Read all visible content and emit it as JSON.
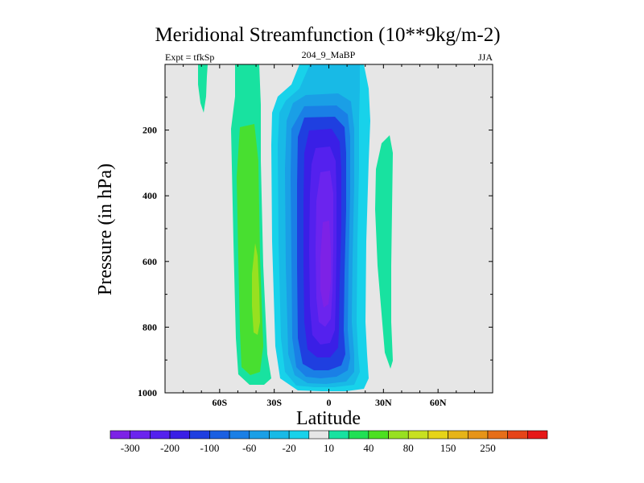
{
  "chart_data": {
    "type": "contour",
    "title": "Meridional Streamfunction (10**9kg/m-2)",
    "left_string": "Expt = tfkSp",
    "center_string": "204_9_MaBP",
    "right_string": "JJA",
    "xlabel": "Latitude",
    "ylabel": "Pressure (in hPa)",
    "xlim": [
      -90,
      90
    ],
    "ylim": [
      0,
      1000
    ],
    "y_inverted": true,
    "x_ticks": [
      {
        "value": -60,
        "label": "60S"
      },
      {
        "value": -30,
        "label": "30S"
      },
      {
        "value": 0,
        "label": "0"
      },
      {
        "value": 30,
        "label": "30N"
      },
      {
        "value": 60,
        "label": "60N"
      }
    ],
    "y_ticks": [
      {
        "value": 200,
        "label": "200"
      },
      {
        "value": 400,
        "label": "400"
      },
      {
        "value": 600,
        "label": "600"
      },
      {
        "value": 800,
        "label": "800"
      },
      {
        "value": 1000,
        "label": "1000"
      }
    ],
    "background_color": "#e6e6e6",
    "colorbar": {
      "colors": [
        "#7d22e6",
        "#6b24ee",
        "#5421ee",
        "#3a1fe6",
        "#1f3fe0",
        "#1a5fe2",
        "#1a7fe6",
        "#1a9fe6",
        "#18bae6",
        "#18d2ea",
        "#e6e6e6",
        "#18e2a0",
        "#20e054",
        "#4ce020",
        "#98e020",
        "#c8e020",
        "#e6d418",
        "#e6b418",
        "#e69418",
        "#e66e18",
        "#e64418",
        "#e61818"
      ],
      "labels": [
        {
          "boundary": 1,
          "text": "-300"
        },
        {
          "boundary": 3,
          "text": "-200"
        },
        {
          "boundary": 5,
          "text": "-100"
        },
        {
          "boundary": 7,
          "text": "-60"
        },
        {
          "boundary": 9,
          "text": "-20"
        },
        {
          "boundary": 11,
          "text": "10"
        },
        {
          "boundary": 13,
          "text": "40"
        },
        {
          "boundary": 15,
          "text": "80"
        },
        {
          "boundary": 17,
          "text": "150"
        },
        {
          "boundary": 19,
          "text": "250"
        }
      ]
    },
    "cells": [
      {
        "sign": "positive",
        "description": "weak cell near 60S upper levels",
        "extent_lat": [
          -76,
          -70
        ],
        "extent_p": [
          0,
          140
        ],
        "level_index": 11
      },
      {
        "sign": "positive",
        "description": "southern hemisphere cell (Ferrel)",
        "extent_lat": [
          -57,
          -24
        ],
        "extent_p": [
          0,
          975
        ],
        "level_index": 11
      },
      {
        "sign": "positive",
        "description": "southern hemisphere cell core",
        "extent_lat": [
          -53,
          -27
        ],
        "extent_p": [
          150,
          960
        ],
        "level_index": 12
      },
      {
        "sign": "positive",
        "description": "southern hemisphere cell max",
        "extent_lat": [
          -43,
          -35
        ],
        "extent_p": [
          300,
          825
        ],
        "level_index": 13
      },
      {
        "sign": "negative",
        "description": "tropical Hadley cell",
        "extent_lat": [
          -30,
          19
        ],
        "extent_p": [
          0,
          985
        ],
        "level_index": 9
      },
      {
        "sign": "negative",
        "description": "tropical Hadley cell inner",
        "extent_lat": [
          -26,
          15
        ],
        "extent_p": [
          60,
          960
        ],
        "level_index": 6
      },
      {
        "sign": "negative",
        "description": "tropical Hadley cell core",
        "extent_lat": [
          -20,
          10
        ],
        "extent_p": [
          150,
          925
        ],
        "level_index": 3
      },
      {
        "sign": "negative",
        "description": "tropical Hadley cell maximum",
        "extent_lat": [
          -12,
          6
        ],
        "extent_p": [
          270,
          850
        ],
        "level_index": 0
      },
      {
        "sign": "positive",
        "description": "weak northern subtropical cell",
        "extent_lat": [
          22,
          34
        ],
        "extent_p": [
          210,
          920
        ],
        "level_index": 11
      }
    ]
  }
}
